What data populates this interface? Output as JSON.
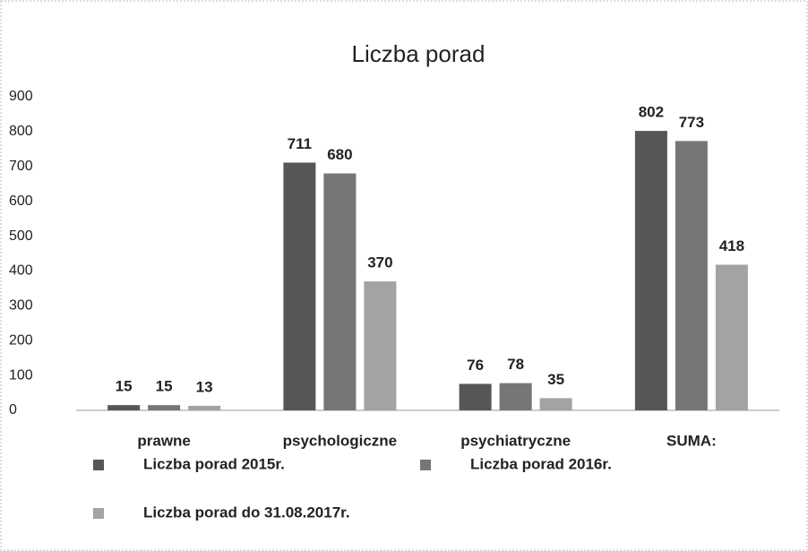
{
  "chart_data": {
    "type": "bar",
    "title": "Liczba porad",
    "categories": [
      "prawne",
      "psychologiczne",
      "psychiatryczne",
      "SUMA:"
    ],
    "series": [
      {
        "name": "Liczba porad 2015r.",
        "color": "#565656",
        "values": [
          15,
          711,
          76,
          802
        ]
      },
      {
        "name": "Liczba porad 2016r.",
        "color": "#767676",
        "values": [
          15,
          680,
          78,
          773
        ]
      },
      {
        "name": "Liczba porad do 31.08.2017r.",
        "color": "#a3a3a3",
        "values": [
          13,
          370,
          35,
          418
        ]
      }
    ],
    "ylim": [
      0,
      900
    ],
    "yticks": [
      0,
      100,
      200,
      300,
      400,
      500,
      600,
      700,
      800,
      900
    ],
    "grid": false
  }
}
